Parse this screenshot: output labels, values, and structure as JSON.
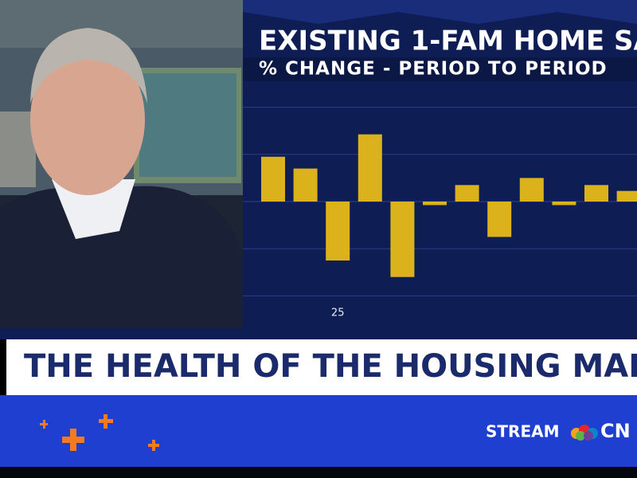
{
  "chart_data": {
    "type": "bar",
    "title": "EXISTING 1-FAM HOME SA",
    "subtitle": "% CHANGE - PERIOD TO PERIOD",
    "categories": [
      null,
      null,
      "25",
      null,
      null,
      null,
      null,
      null,
      null,
      null,
      null,
      null
    ],
    "values": [
      1.9,
      1.4,
      -2.5,
      2.85,
      -3.2,
      -0.15,
      0.7,
      -1.5,
      1.0,
      -0.15,
      0.7,
      0.45
    ],
    "color": "#dcb21c",
    "ylim": [
      -5,
      5
    ],
    "yticks": [
      -4,
      -2,
      0,
      2,
      4
    ],
    "grid": true
  },
  "lower_third": {
    "headline": "THE HEALTH OF THE HOUSING MAR"
  },
  "branding": {
    "stream": "STREAM",
    "network": "CN"
  }
}
